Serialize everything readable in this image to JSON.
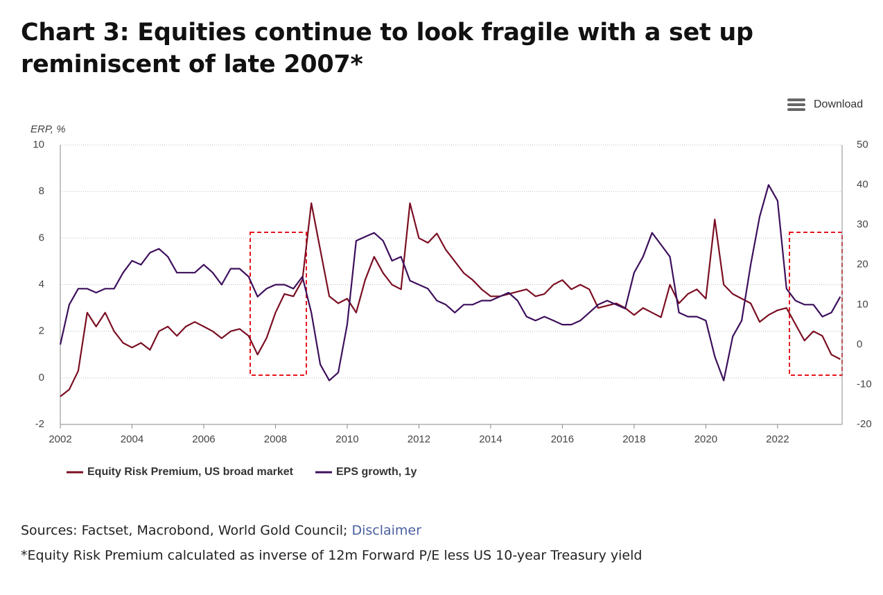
{
  "header": {
    "title": "Chart 3: Equities continue to look fragile with a set up reminiscent of late 2007*",
    "download": "Download"
  },
  "chart_data": {
    "type": "line",
    "y_axis_label": "ERP, %",
    "x": [
      2002,
      2002.25,
      2002.5,
      2002.75,
      2003,
      2003.25,
      2003.5,
      2003.75,
      2004,
      2004.25,
      2004.5,
      2004.75,
      2005,
      2005.25,
      2005.5,
      2005.75,
      2006,
      2006.25,
      2006.5,
      2006.75,
      2007,
      2007.25,
      2007.5,
      2007.75,
      2008,
      2008.25,
      2008.5,
      2008.75,
      2009,
      2009.25,
      2009.5,
      2009.75,
      2010,
      2010.25,
      2010.5,
      2010.75,
      2011,
      2011.25,
      2011.5,
      2011.75,
      2012,
      2012.25,
      2012.5,
      2012.75,
      2013,
      2013.25,
      2013.5,
      2013.75,
      2014,
      2014.25,
      2014.5,
      2014.75,
      2015,
      2015.25,
      2015.5,
      2015.75,
      2016,
      2016.25,
      2016.5,
      2016.75,
      2017,
      2017.25,
      2017.5,
      2017.75,
      2018,
      2018.25,
      2018.5,
      2018.75,
      2019,
      2019.25,
      2019.5,
      2019.75,
      2020,
      2020.25,
      2020.5,
      2020.75,
      2021,
      2021.25,
      2021.5,
      2021.75,
      2022,
      2022.25,
      2022.5,
      2022.75,
      2023,
      2023.25,
      2023.5,
      2023.75
    ],
    "series": [
      {
        "name": "Equity Risk Premium, US broad market",
        "color": "#7a0e22",
        "axis": "y",
        "values": [
          -0.8,
          -0.5,
          0.3,
          2.8,
          2.2,
          2.8,
          2.0,
          1.5,
          1.3,
          1.5,
          1.2,
          2.0,
          2.2,
          1.8,
          2.2,
          2.4,
          2.2,
          2.0,
          1.7,
          2.0,
          2.1,
          1.8,
          1.0,
          1.7,
          2.8,
          3.6,
          3.5,
          4.2,
          7.5,
          5.5,
          3.5,
          3.2,
          3.4,
          2.8,
          4.2,
          5.2,
          4.5,
          4.0,
          3.8,
          7.5,
          6.0,
          5.8,
          6.2,
          5.5,
          5.0,
          4.5,
          4.2,
          3.8,
          3.5,
          3.5,
          3.6,
          3.7,
          3.8,
          3.5,
          3.6,
          4.0,
          4.2,
          3.8,
          4.0,
          3.8,
          3.0,
          3.1,
          3.2,
          3.0,
          2.7,
          3.0,
          2.8,
          2.6,
          4.0,
          3.2,
          3.6,
          3.8,
          3.4,
          6.8,
          4.0,
          3.6,
          3.4,
          3.2,
          2.4,
          2.7,
          2.9,
          3.0,
          2.3,
          1.6,
          2.0,
          1.8,
          1.0,
          0.8
        ]
      },
      {
        "name": "EPS growth, 1y",
        "color": "#3d0f5c",
        "axis": "y2",
        "values": [
          0,
          10,
          14,
          14,
          13,
          14,
          14,
          18,
          21,
          20,
          23,
          24,
          22,
          18,
          18,
          18,
          20,
          18,
          15,
          19,
          19,
          17,
          12,
          14,
          15,
          15,
          14,
          17,
          8,
          -5,
          -9,
          -7,
          5,
          26,
          27,
          28,
          26,
          21,
          22,
          16,
          15,
          14,
          11,
          10,
          8,
          10,
          10,
          11,
          11,
          12,
          13,
          11,
          7,
          6,
          7,
          6,
          5,
          5,
          6,
          8,
          10,
          11,
          10,
          9,
          18,
          22,
          28,
          25,
          22,
          8,
          7,
          7,
          6,
          -3,
          -9,
          2,
          6,
          20,
          32,
          40,
          36,
          14,
          11,
          10,
          10,
          7,
          8,
          12
        ]
      }
    ],
    "xlim": [
      2002,
      2023.8
    ],
    "xticks": [
      2002,
      2004,
      2006,
      2008,
      2010,
      2012,
      2014,
      2016,
      2018,
      2020,
      2022
    ],
    "ylim": [
      -2,
      10
    ],
    "yticks": [
      -2,
      0,
      2,
      4,
      6,
      8,
      10
    ],
    "y2lim": [
      -20,
      50
    ],
    "y2ticks": [
      -20,
      -10,
      0,
      10,
      20,
      30,
      40,
      50
    ],
    "grid": true,
    "legend": "bottom"
  },
  "footer": {
    "sources": "Sources: Factset, Macrobond, World Gold Council;",
    "disclaimer": "Disclaimer",
    "note": "*Equity Risk Premium calculated as inverse of 12m Forward P/E less US 10-year Treasury yield"
  }
}
